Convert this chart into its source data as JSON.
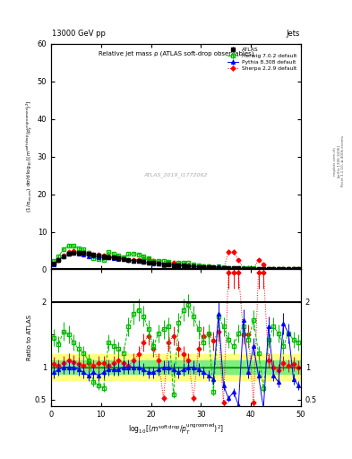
{
  "title_top_left": "13000 GeV pp",
  "title_top_right": "Jets",
  "panel_title": "Relative jet mass ρ (ATLAS soft-drop observables)",
  "watermark": "ATLAS_2019_I1772062",
  "ylabel_main": "(1/σ_resum) dσ/d log_10[(m^soft drop/p_T^ungroomed)^2]",
  "ylabel_ratio": "Ratio to ATLAS",
  "xlabel": "log_10[(m^{soft drop}/p_T^{ungroomed})^2]",
  "right_label1": "Rivet 3.1.10, ≥ 400k events",
  "right_label2": "[arXiv:1306.3436]",
  "right_label3": "mcplots.cern.ch",
  "ylim_main": [
    0,
    60
  ],
  "ylim_ratio": [
    0.4,
    2.5
  ],
  "xlim": [
    0,
    50
  ],
  "yticks_main": [
    0,
    10,
    20,
    30,
    40,
    50,
    60
  ],
  "yticks_ratio": [
    0.5,
    1.0,
    1.5,
    2.0,
    2.5
  ],
  "xticks": [
    0,
    10,
    20,
    30,
    40,
    50
  ],
  "atlas_color": "#000000",
  "herwig_color": "#00bb00",
  "pythia_color": "#0000ff",
  "sherpa_color": "#ff0000",
  "band_yellow": "#ffff80",
  "band_green": "#80ee80",
  "ratio_line_color": "#00aa00",
  "n_points": 50,
  "x_min": 0.5,
  "x_max": 49.5
}
